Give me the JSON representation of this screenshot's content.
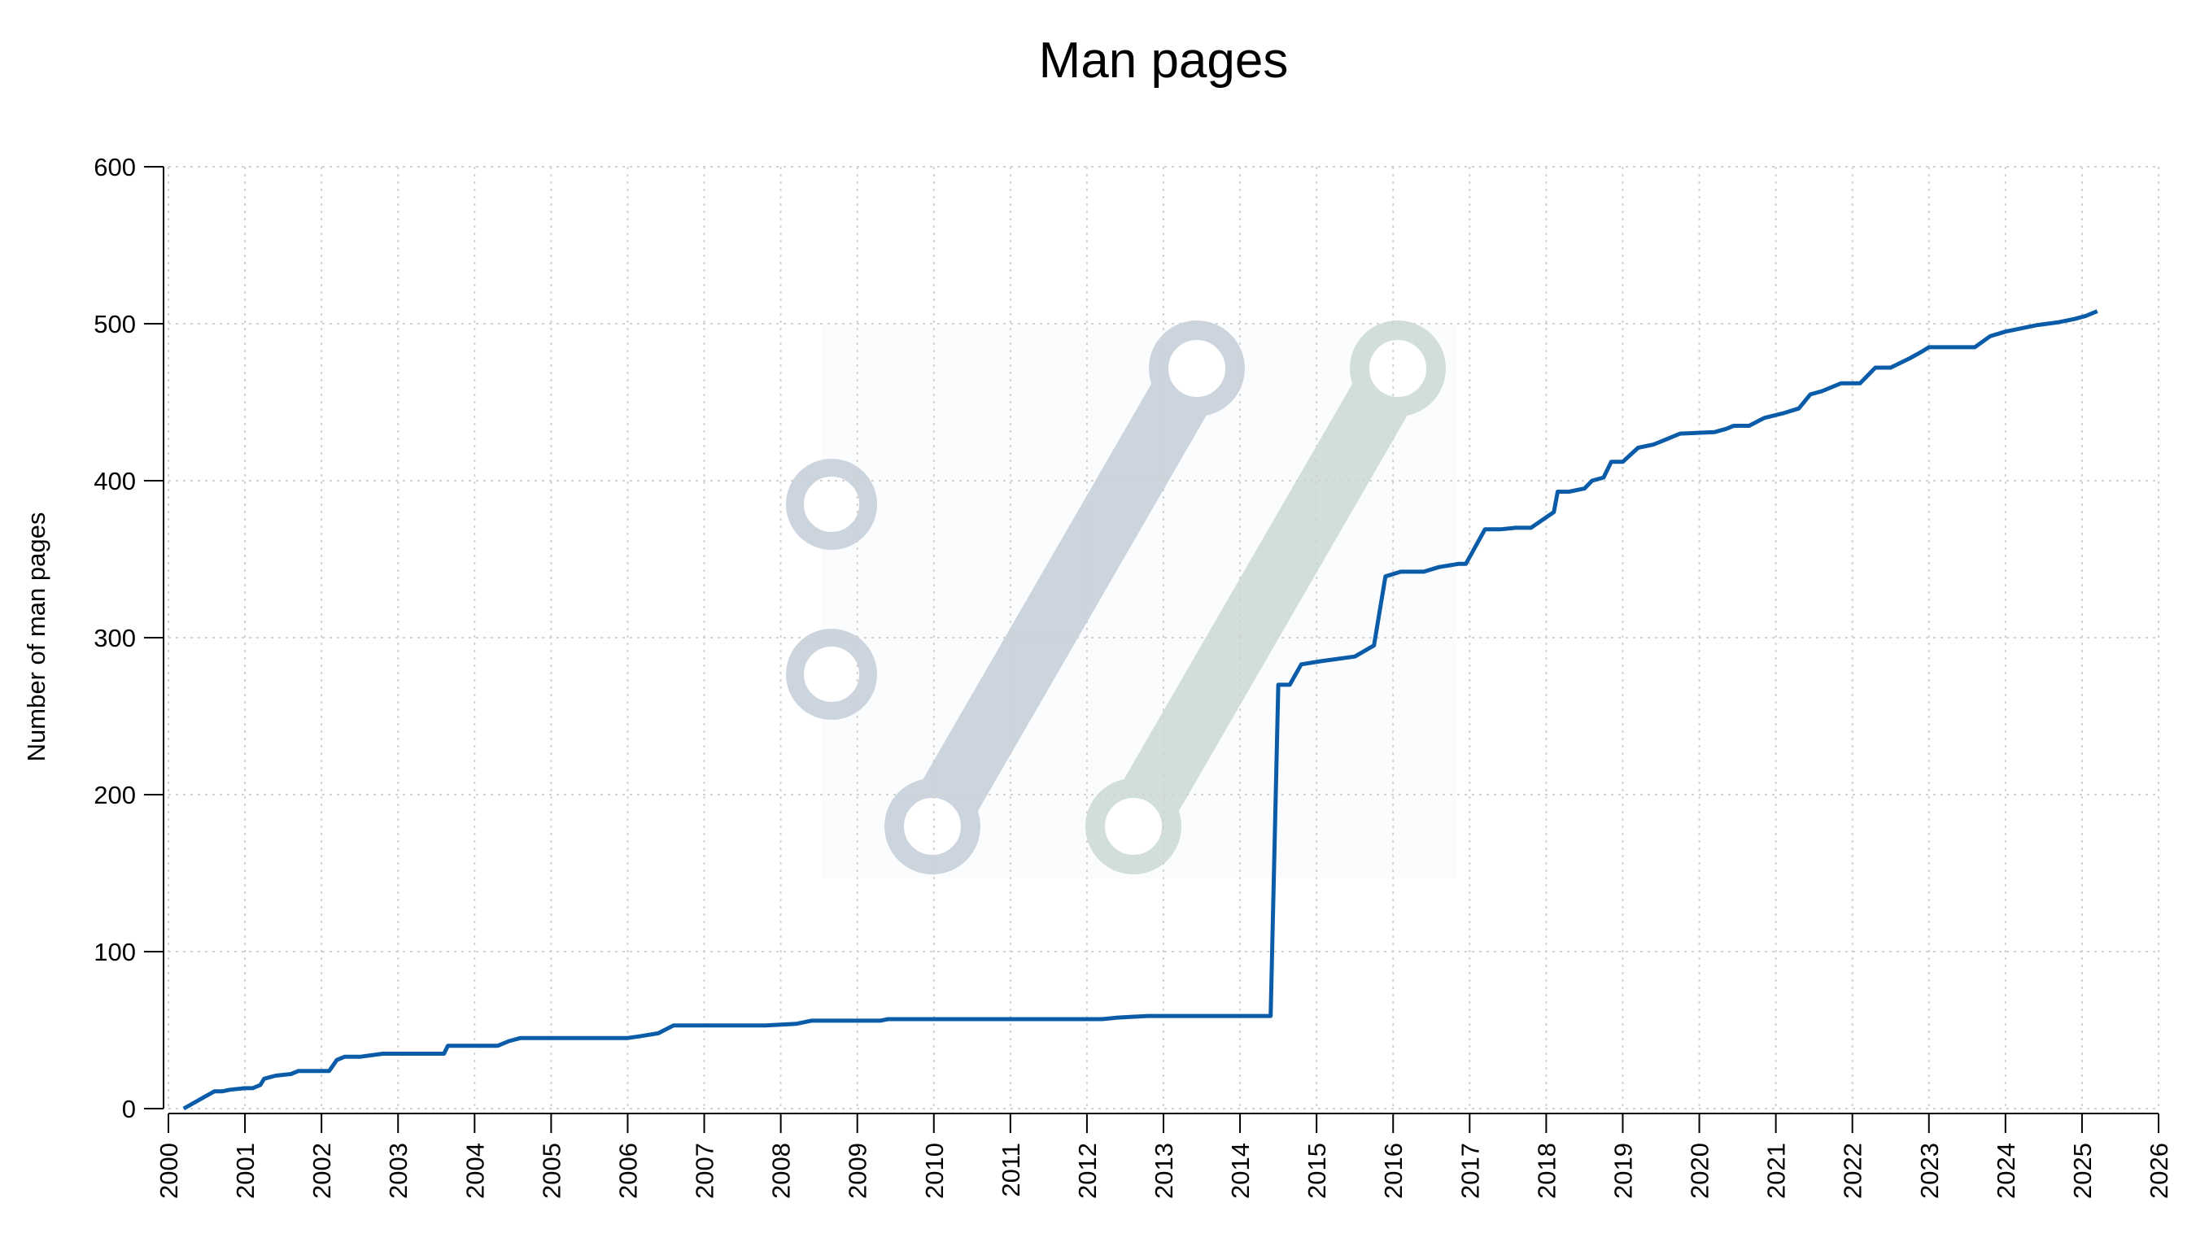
{
  "chart_data": {
    "type": "line",
    "title": "Man pages",
    "xlabel": "",
    "ylabel": "Number of man pages",
    "xlim": [
      2000,
      2026
    ],
    "ylim": [
      0,
      600
    ],
    "grid": true,
    "x_ticks": [
      "2000",
      "2001",
      "2002",
      "2003",
      "2004",
      "2005",
      "2006",
      "2007",
      "2008",
      "2009",
      "2010",
      "2011",
      "2012",
      "2013",
      "2014",
      "2015",
      "2016",
      "2017",
      "2018",
      "2019",
      "2020",
      "2021",
      "2022",
      "2023",
      "2024",
      "2025",
      "2026"
    ],
    "y_ticks": [
      "0",
      "100",
      "200",
      "300",
      "400",
      "500",
      "600"
    ],
    "colors": {
      "series": "#0a5ca8",
      "watermark_a": "#ccd5de",
      "watermark_b": "#d1ded9"
    },
    "series": [
      {
        "x": [
          2000.2,
          2000.6,
          2000.7,
          2000.8,
          2001.0,
          2001.1,
          2001.2,
          2001.25,
          2001.4,
          2001.6,
          2001.7,
          2002.1,
          2002.2,
          2002.3,
          2002.5,
          2002.8,
          2003.6,
          2003.65,
          2004.3,
          2004.45,
          2004.6,
          2006.0,
          2006.15,
          2006.4,
          2006.6,
          2007.8,
          2008.2,
          2008.4,
          2009.3,
          2009.4,
          2012.2,
          2012.4,
          2012.8,
          2014.4,
          2014.5,
          2014.65,
          2014.8,
          2015.05,
          2015.5,
          2015.75,
          2015.9,
          2016.1,
          2016.4,
          2016.6,
          2016.85,
          2016.95,
          2017.2,
          2017.4,
          2017.6,
          2017.8,
          2018.1,
          2018.15,
          2018.3,
          2018.5,
          2018.6,
          2018.75,
          2018.85,
          2019.0,
          2019.2,
          2019.4,
          2019.6,
          2019.75,
          2020.2,
          2020.35,
          2020.45,
          2020.65,
          2020.85,
          2021.1,
          2021.3,
          2021.45,
          2021.6,
          2021.85,
          2022.1,
          2022.3,
          2022.5,
          2022.75,
          2022.9,
          2023.0,
          2023.45,
          2023.6,
          2023.8,
          2024.0,
          2024.2,
          2024.4,
          2024.7,
          2024.9,
          2025.05,
          2025.2
        ],
        "y": [
          0,
          11,
          11,
          12,
          13,
          13,
          15,
          19,
          21,
          22,
          24,
          24,
          31,
          33,
          33,
          35,
          35,
          40,
          40,
          43,
          45,
          45,
          46,
          48,
          53,
          53,
          54,
          56,
          56,
          57,
          57,
          58,
          59,
          59,
          270,
          270,
          283,
          285,
          288,
          295,
          339,
          342,
          342,
          345,
          347,
          347,
          369,
          369,
          370,
          370,
          380,
          393,
          393,
          395,
          400,
          402,
          412,
          412,
          421,
          423,
          427,
          430,
          431,
          433,
          435,
          435,
          440,
          443,
          446,
          455,
          457,
          462,
          462,
          472,
          472,
          478,
          482,
          485,
          485,
          485,
          492,
          495,
          497,
          499,
          501,
          503,
          505,
          508
        ]
      }
    ]
  }
}
